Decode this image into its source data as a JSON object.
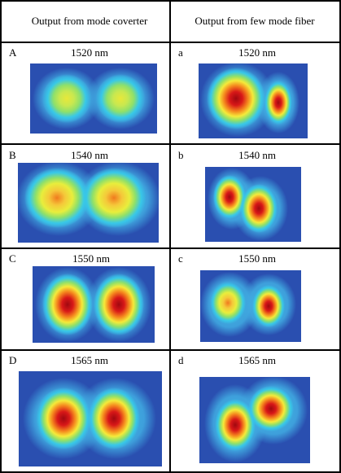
{
  "table": {
    "headers": [
      "Output from mode coverter",
      "Output from few mode fiber"
    ],
    "rows": [
      {
        "left": {
          "label": "A",
          "wavelength": "1520 nm"
        },
        "right": {
          "label": "a",
          "wavelength": "1520 nm"
        }
      },
      {
        "left": {
          "label": "B",
          "wavelength": "1540 nm"
        },
        "right": {
          "label": "b",
          "wavelength": "1540 nm"
        }
      },
      {
        "left": {
          "label": "C",
          "wavelength": "1550 nm"
        },
        "right": {
          "label": "c",
          "wavelength": "1550 nm"
        }
      },
      {
        "left": {
          "label": "D",
          "wavelength": "1565 nm"
        },
        "right": {
          "label": "d",
          "wavelength": "1565 nm"
        }
      }
    ]
  },
  "colors": {
    "background_field": "#2a4fb0",
    "cyan": "#38c8e8",
    "green": "#8fe06a",
    "yellow": "#f5ea3a",
    "orange": "#f58a1e",
    "red": "#d81818",
    "darkred": "#a00810",
    "grid_line": "#000000"
  }
}
